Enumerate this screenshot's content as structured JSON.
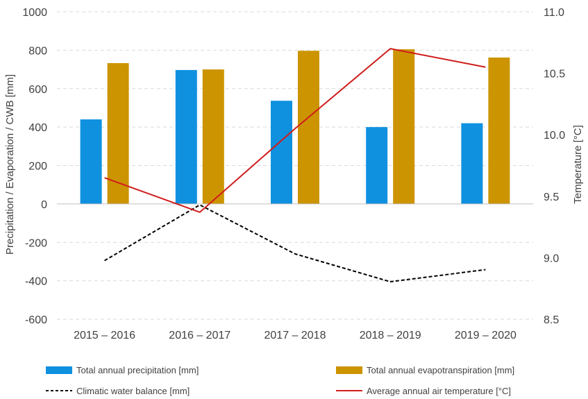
{
  "chart_data": {
    "type": "bar",
    "categories": [
      "2015 – 2016",
      "2016 – 2017",
      "2017 – 2018",
      "2018 – 2019",
      "2019 – 2020"
    ],
    "series": [
      {
        "name": "Total annual precipitation [mm]",
        "kind": "bar",
        "axis": "left",
        "color": "#0f91e0",
        "values": [
          440,
          697,
          537,
          400,
          420
        ]
      },
      {
        "name": "Total annual evapotranspiration [mm]",
        "kind": "bar",
        "axis": "left",
        "color": "#cc9400",
        "values": [
          733,
          700,
          797,
          805,
          762
        ]
      },
      {
        "name": "Climatic water balance [mm]",
        "kind": "line",
        "style": "dashed",
        "axis": "left",
        "color": "#000000",
        "values": [
          -295,
          -5,
          -260,
          -405,
          -342
        ]
      },
      {
        "name": "Average annual air temperature [°C]",
        "kind": "line",
        "style": "solid",
        "axis": "right",
        "color": "#d01c1c",
        "values": [
          9.65,
          9.37,
          10.05,
          10.7,
          10.55
        ]
      }
    ],
    "y_left": {
      "label": "Precipitation / Evaporation / CWB [mm]",
      "min": -600,
      "max": 1000,
      "ticks": [
        1000,
        800,
        600,
        400,
        200,
        0,
        -200,
        -400,
        -600
      ],
      "tick_labels": [
        "1000",
        "800",
        "600",
        "400",
        "200",
        "0",
        "-200",
        "-400",
        "-600"
      ]
    },
    "y_right": {
      "label": "Temperature [°C]",
      "min": 8.5,
      "max": 11.0,
      "ticks": [
        11.0,
        10.5,
        10.0,
        9.5,
        9.0,
        8.5
      ],
      "tick_labels": [
        "11.0",
        "10.5",
        "10.0",
        "9.5",
        "9.0",
        "8.5"
      ]
    },
    "grid": true,
    "legend_position": "bottom"
  }
}
